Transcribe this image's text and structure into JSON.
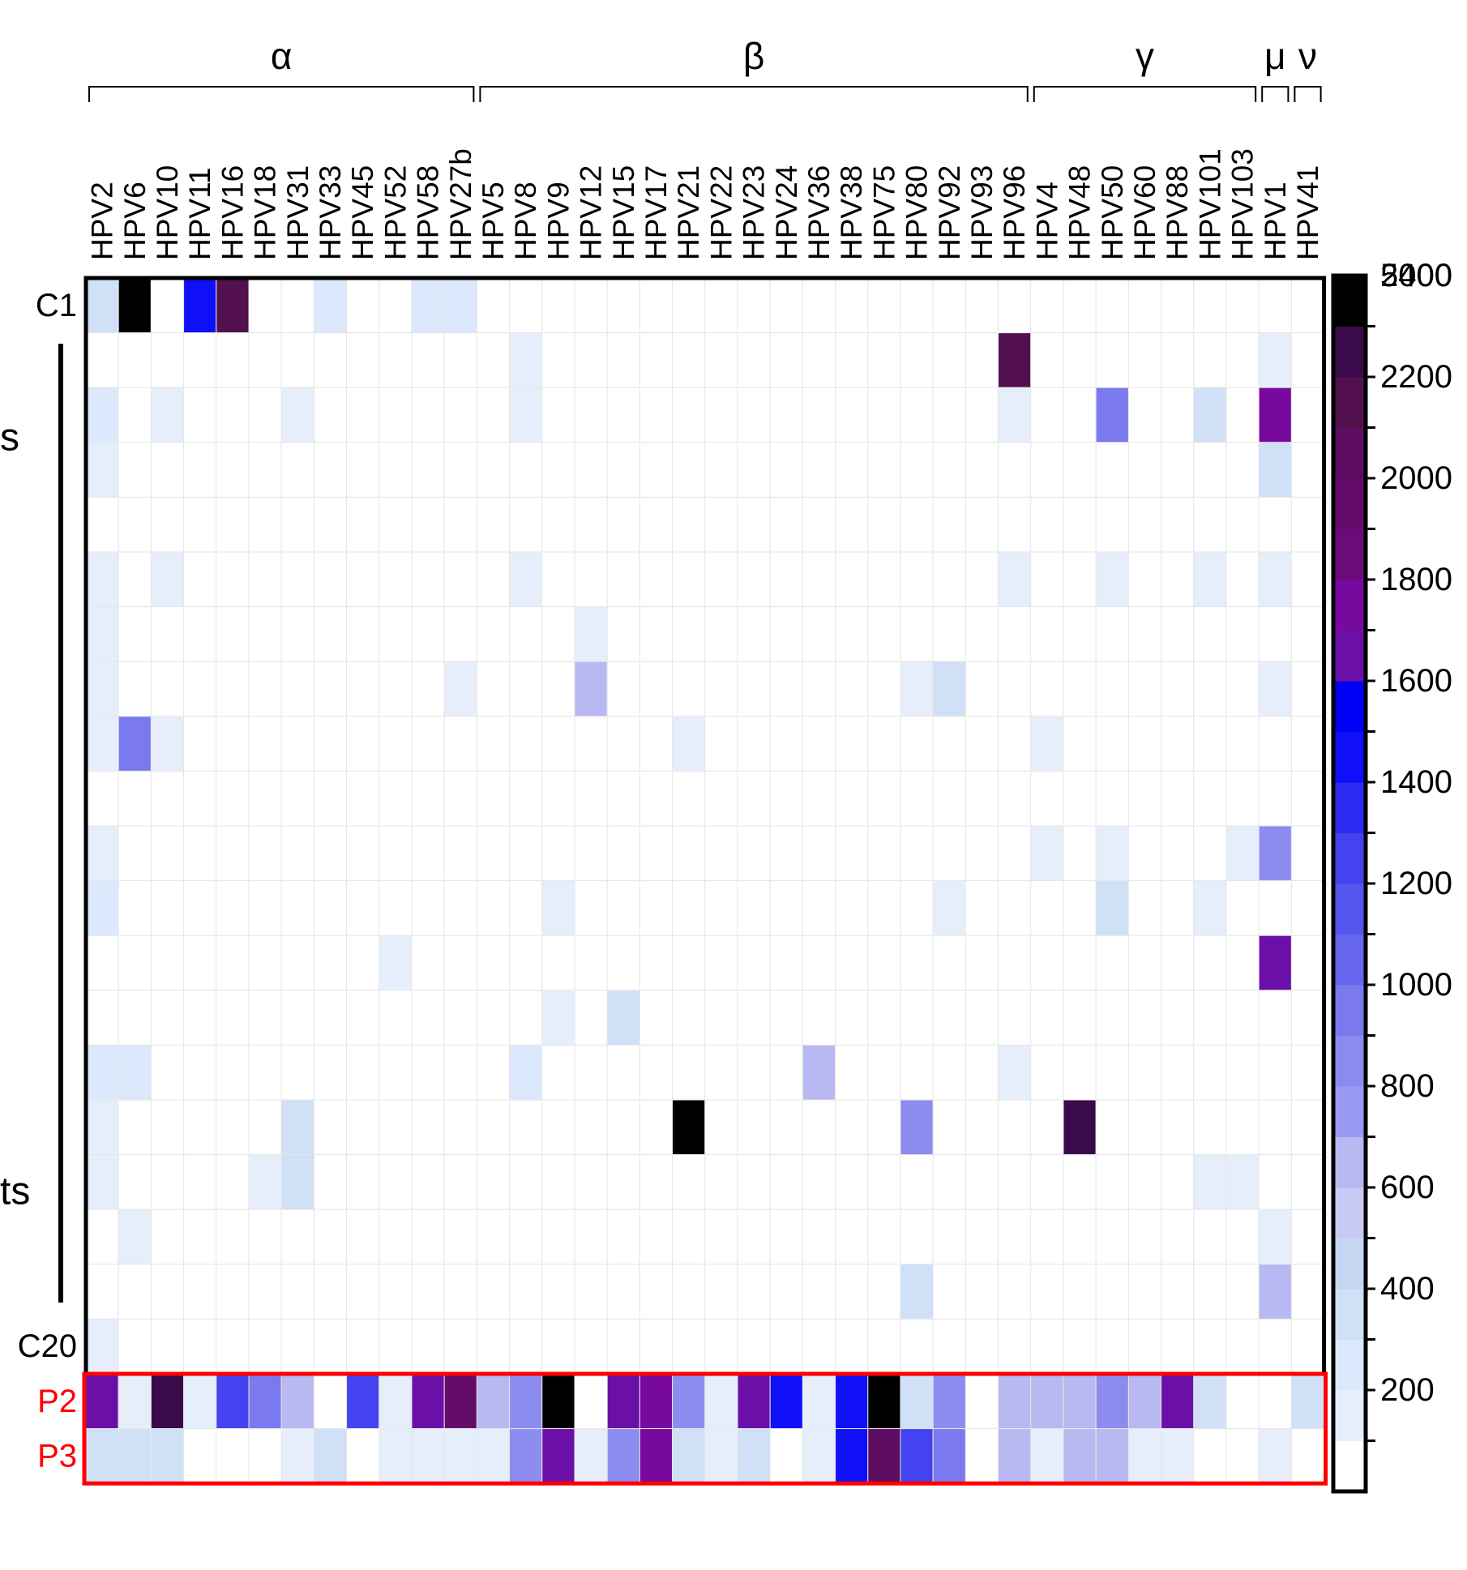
{
  "chart_data": {
    "type": "heatmap",
    "title": "",
    "xlabel": "",
    "ylabel": "",
    "groups": [
      {
        "label": "α",
        "start": "HPV2",
        "end": "HPV27b"
      },
      {
        "label": "β",
        "start": "HPV5",
        "end": "HPV96"
      },
      {
        "label": "γ",
        "start": "HPV4",
        "end": "HPV103"
      },
      {
        "label": "μ",
        "start": "HPV1",
        "end": "HPV1"
      },
      {
        "label": "ν",
        "start": "HPV41",
        "end": "HPV41"
      }
    ],
    "columns": [
      "HPV2",
      "HPV6",
      "HPV10",
      "HPV11",
      "HPV16",
      "HPV18",
      "HPV31",
      "HPV33",
      "HPV45",
      "HPV52",
      "HPV58",
      "HPV27b",
      "HPV5",
      "HPV8",
      "HPV9",
      "HPV12",
      "HPV15",
      "HPV17",
      "HPV21",
      "HPV22",
      "HPV23",
      "HPV24",
      "HPV36",
      "HPV38",
      "HPV75",
      "HPV80",
      "HPV92",
      "HPV93",
      "HPV96",
      "HPV4",
      "HPV48",
      "HPV50",
      "HPV60",
      "HPV88",
      "HPV101",
      "HPV103",
      "HPV1",
      "HPV41"
    ],
    "rows": [
      "C1",
      "",
      "",
      "",
      "",
      "",
      "",
      "",
      "",
      "",
      "",
      "",
      "",
      "",
      "",
      "",
      "",
      "",
      "",
      "C20",
      "P2",
      "P3"
    ],
    "row_label_fragments": [
      "s",
      "ts"
    ],
    "highlighted_rows": [
      "P2",
      "P3"
    ],
    "values": [
      [
        350,
        5000,
        0,
        1500,
        2300,
        0,
        0,
        250,
        0,
        0,
        250,
        250,
        0,
        0,
        0,
        0,
        0,
        0,
        0,
        0,
        0,
        0,
        0,
        0,
        0,
        0,
        0,
        0,
        0,
        0,
        0,
        0,
        0,
        0,
        0,
        0,
        0,
        0
      ],
      [
        0,
        0,
        0,
        0,
        0,
        0,
        0,
        0,
        0,
        0,
        0,
        0,
        0,
        150,
        0,
        0,
        0,
        0,
        0,
        0,
        0,
        0,
        0,
        0,
        0,
        0,
        0,
        0,
        2300,
        0,
        0,
        0,
        0,
        0,
        0,
        0,
        150,
        0
      ],
      [
        300,
        0,
        150,
        0,
        0,
        0,
        150,
        0,
        0,
        0,
        0,
        0,
        0,
        150,
        0,
        0,
        0,
        0,
        0,
        0,
        0,
        0,
        0,
        0,
        0,
        0,
        0,
        0,
        150,
        0,
        0,
        1000,
        0,
        0,
        350,
        0,
        1900,
        0
      ],
      [
        150,
        0,
        0,
        0,
        0,
        0,
        0,
        0,
        0,
        0,
        0,
        0,
        0,
        0,
        0,
        0,
        0,
        0,
        0,
        0,
        0,
        0,
        0,
        0,
        0,
        0,
        0,
        0,
        0,
        0,
        0,
        0,
        0,
        0,
        0,
        0,
        350,
        0
      ],
      [
        0,
        0,
        0,
        0,
        0,
        0,
        0,
        0,
        0,
        0,
        0,
        0,
        0,
        0,
        0,
        0,
        0,
        0,
        0,
        0,
        0,
        0,
        0,
        0,
        0,
        0,
        0,
        0,
        0,
        0,
        0,
        0,
        0,
        0,
        0,
        0,
        0,
        0
      ],
      [
        150,
        0,
        150,
        0,
        0,
        0,
        0,
        0,
        0,
        0,
        0,
        0,
        0,
        150,
        0,
        0,
        0,
        0,
        0,
        0,
        0,
        0,
        0,
        0,
        0,
        0,
        0,
        0,
        150,
        0,
        0,
        150,
        0,
        0,
        150,
        0,
        150,
        0
      ],
      [
        150,
        0,
        0,
        0,
        0,
        0,
        0,
        0,
        0,
        0,
        0,
        0,
        0,
        0,
        0,
        150,
        0,
        0,
        0,
        0,
        0,
        0,
        0,
        0,
        0,
        0,
        0,
        0,
        0,
        0,
        0,
        0,
        0,
        0,
        0,
        0,
        0,
        0
      ],
      [
        150,
        0,
        0,
        0,
        0,
        0,
        0,
        0,
        0,
        0,
        0,
        150,
        0,
        0,
        0,
        700,
        0,
        0,
        0,
        0,
        0,
        0,
        0,
        0,
        0,
        150,
        350,
        0,
        0,
        0,
        0,
        0,
        0,
        0,
        0,
        0,
        150,
        0
      ],
      [
        150,
        1000,
        150,
        0,
        0,
        0,
        0,
        0,
        0,
        0,
        0,
        0,
        0,
        0,
        0,
        0,
        0,
        0,
        150,
        0,
        0,
        0,
        0,
        0,
        0,
        0,
        0,
        0,
        0,
        150,
        0,
        0,
        0,
        0,
        0,
        0,
        0,
        0
      ],
      [
        0,
        0,
        0,
        0,
        0,
        0,
        0,
        0,
        0,
        0,
        0,
        0,
        0,
        0,
        0,
        0,
        0,
        0,
        0,
        0,
        0,
        0,
        0,
        0,
        0,
        0,
        0,
        0,
        0,
        0,
        0,
        0,
        0,
        0,
        0,
        0,
        0,
        0
      ],
      [
        150,
        0,
        0,
        0,
        0,
        0,
        0,
        0,
        0,
        0,
        0,
        0,
        0,
        0,
        0,
        0,
        0,
        0,
        0,
        0,
        0,
        0,
        0,
        0,
        0,
        0,
        0,
        0,
        0,
        150,
        0,
        150,
        0,
        0,
        0,
        150,
        900,
        0
      ],
      [
        300,
        0,
        0,
        0,
        0,
        0,
        0,
        0,
        0,
        0,
        0,
        0,
        0,
        0,
        150,
        0,
        0,
        0,
        0,
        0,
        0,
        0,
        0,
        0,
        0,
        0,
        150,
        0,
        0,
        0,
        0,
        350,
        0,
        0,
        150,
        0,
        0,
        0
      ],
      [
        0,
        0,
        0,
        0,
        0,
        0,
        0,
        0,
        0,
        150,
        0,
        0,
        0,
        0,
        0,
        0,
        0,
        0,
        0,
        0,
        0,
        0,
        0,
        0,
        0,
        0,
        0,
        0,
        0,
        0,
        0,
        0,
        0,
        0,
        0,
        0,
        1700,
        0
      ],
      [
        0,
        0,
        0,
        0,
        0,
        0,
        0,
        0,
        0,
        0,
        0,
        0,
        0,
        0,
        150,
        0,
        350,
        0,
        0,
        0,
        0,
        0,
        0,
        0,
        0,
        0,
        0,
        0,
        0,
        0,
        0,
        0,
        0,
        0,
        0,
        0,
        0,
        0
      ],
      [
        300,
        300,
        0,
        0,
        0,
        0,
        0,
        0,
        0,
        0,
        0,
        0,
        0,
        300,
        0,
        0,
        0,
        0,
        0,
        0,
        0,
        0,
        700,
        0,
        0,
        0,
        0,
        0,
        150,
        0,
        0,
        0,
        0,
        0,
        0,
        0,
        0,
        0
      ],
      [
        150,
        0,
        0,
        0,
        0,
        0,
        350,
        0,
        0,
        0,
        0,
        0,
        0,
        0,
        0,
        0,
        0,
        0,
        5000,
        0,
        0,
        0,
        0,
        0,
        0,
        900,
        0,
        0,
        0,
        0,
        2400,
        0,
        0,
        0,
        0,
        0,
        0,
        0
      ],
      [
        150,
        0,
        0,
        0,
        0,
        150,
        350,
        0,
        0,
        0,
        0,
        0,
        0,
        0,
        0,
        0,
        0,
        0,
        0,
        0,
        0,
        0,
        0,
        0,
        0,
        0,
        0,
        0,
        0,
        0,
        0,
        0,
        0,
        0,
        150,
        150,
        0,
        0
      ],
      [
        0,
        150,
        0,
        0,
        0,
        0,
        0,
        0,
        0,
        0,
        0,
        0,
        0,
        0,
        0,
        0,
        0,
        0,
        0,
        0,
        0,
        0,
        0,
        0,
        0,
        0,
        0,
        0,
        0,
        0,
        0,
        0,
        0,
        0,
        0,
        0,
        150,
        0
      ],
      [
        0,
        0,
        0,
        0,
        0,
        0,
        0,
        0,
        0,
        0,
        0,
        0,
        0,
        0,
        0,
        0,
        0,
        0,
        0,
        0,
        0,
        0,
        0,
        0,
        0,
        350,
        0,
        0,
        0,
        0,
        0,
        0,
        0,
        0,
        0,
        0,
        650,
        0
      ],
      [
        150,
        0,
        0,
        0,
        0,
        0,
        0,
        0,
        0,
        0,
        0,
        0,
        0,
        0,
        0,
        0,
        0,
        0,
        0,
        0,
        0,
        0,
        0,
        0,
        0,
        0,
        0,
        0,
        0,
        0,
        0,
        0,
        0,
        0,
        0,
        0,
        0,
        0
      ],
      [
        1700,
        150,
        2400,
        150,
        1300,
        1000,
        700,
        0,
        1300,
        150,
        1700,
        2100,
        700,
        900,
        5000,
        0,
        1700,
        1900,
        900,
        150,
        1700,
        1500,
        150,
        1500,
        5000,
        350,
        900,
        0,
        650,
        650,
        650,
        900,
        700,
        1700,
        350,
        0,
        0,
        350
      ],
      [
        350,
        350,
        350,
        0,
        0,
        0,
        150,
        350,
        0,
        150,
        150,
        150,
        150,
        900,
        1700,
        150,
        900,
        1900,
        350,
        150,
        350,
        0,
        150,
        1500,
        2200,
        1300,
        1000,
        0,
        650,
        150,
        650,
        650,
        150,
        150,
        0,
        0,
        150,
        0
      ]
    ],
    "colorbar": {
      "tick_labels": [
        "200",
        "400",
        "600",
        "800",
        "1000",
        "1200",
        "1400",
        "1600",
        "1800",
        "2000",
        "2200",
        "2400",
        "5000"
      ],
      "colors": [
        "#ffffff",
        "#e6eefc",
        "#dce8fb",
        "#cfe0f7",
        "#c6d6f3",
        "#c9c9f6",
        "#b8b8f3",
        "#9a9af5",
        "#8c8cf0",
        "#7a7aee",
        "#6666ee",
        "#5555f0",
        "#4343f0",
        "#2b2bf2",
        "#0f0ff8",
        "#0000f6",
        "#6a10a8",
        "#78099e",
        "#6b0a7a",
        "#640c6a",
        "#5c0d61",
        "#52104f",
        "#3a0a4a",
        "#000000"
      ],
      "bin_edges": [
        0,
        100,
        200,
        300,
        400,
        500,
        600,
        700,
        800,
        900,
        1000,
        1100,
        1200,
        1300,
        1400,
        1500,
        1600,
        1800,
        1900,
        2000,
        2100,
        2200,
        2300,
        2400,
        5000
      ]
    }
  }
}
